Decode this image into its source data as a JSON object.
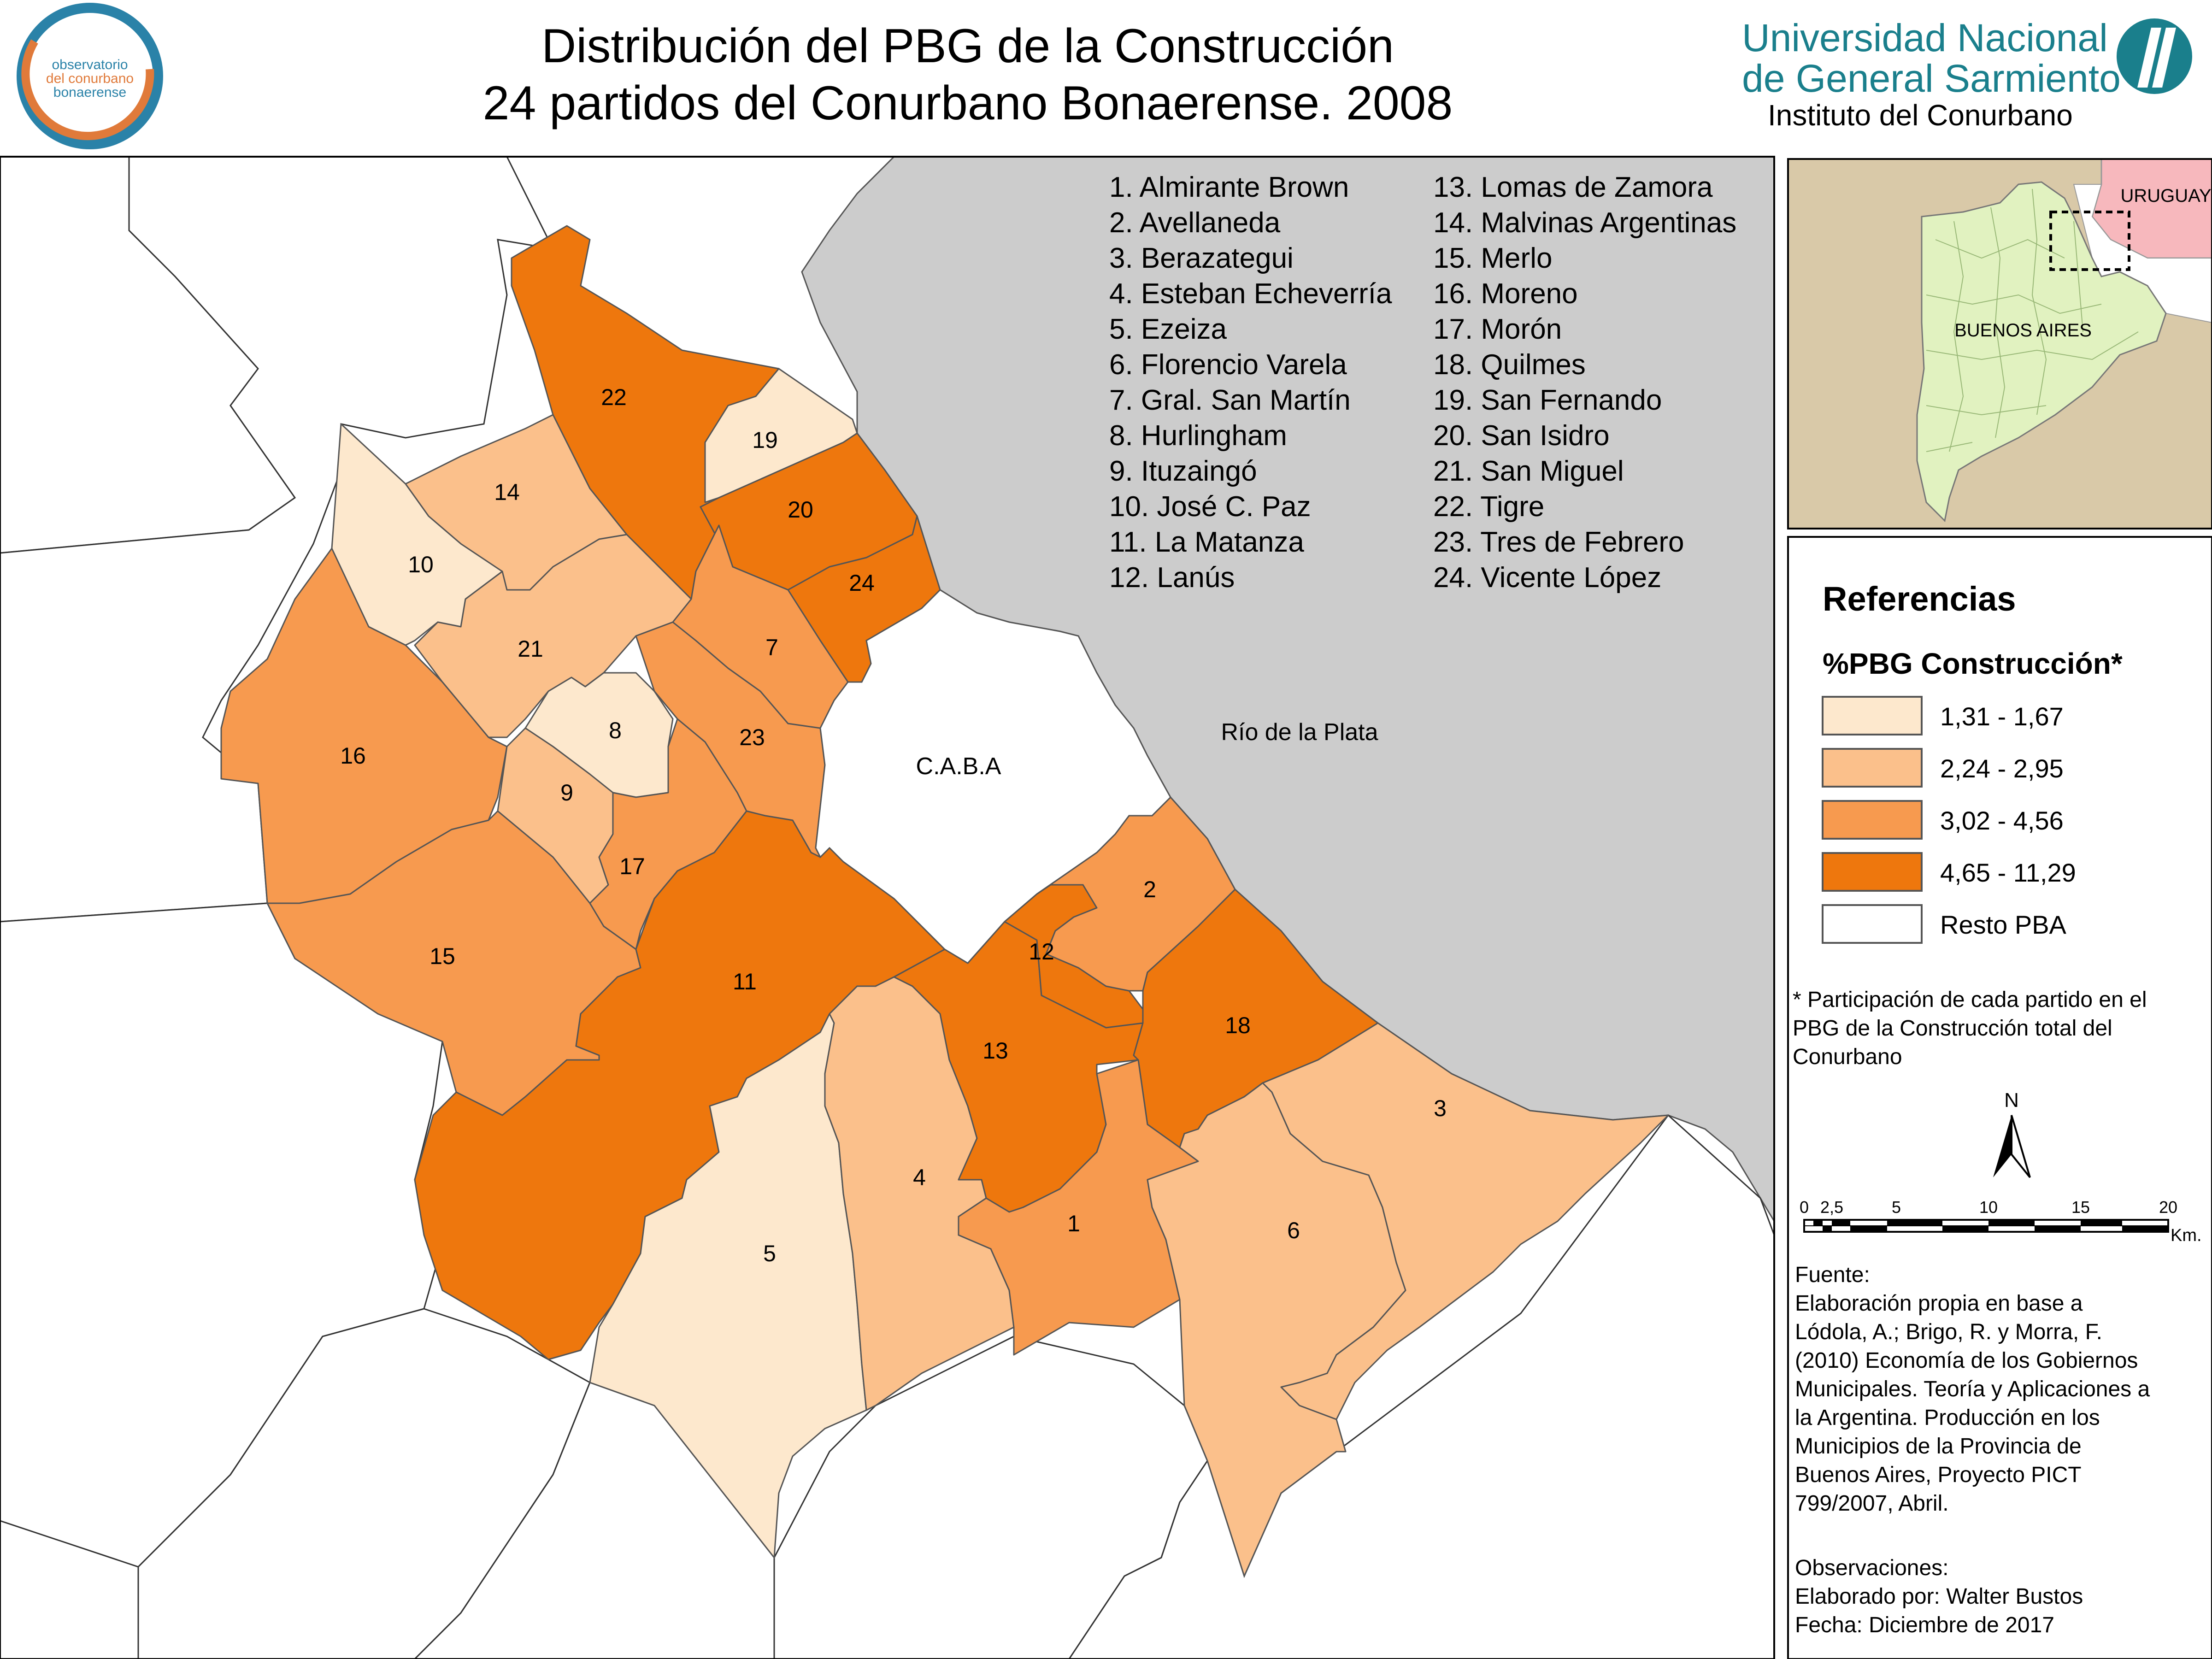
{
  "header": {
    "title_line1": "Distribución del PBG de la Construcción",
    "title_line2": "24 partidos del Conurbano Bonaerense. 2008",
    "logo_left": {
      "line1": "observatorio",
      "line2": "del conurbano",
      "line3": "bonaerense"
    },
    "university": {
      "line1": "Universidad Nacional",
      "line2": "de General Sarmiento",
      "institute": "Instituto del Conurbano"
    }
  },
  "colors": {
    "class1": "#fde8cd",
    "class2": "#fbc08b",
    "class3": "#f79a4f",
    "class4": "#ee770d",
    "resto": "#ffffff",
    "water": "#cccccc",
    "brand_teal": "#1a7f8c",
    "logo_orange": "#e07a3a",
    "logo_blue": "#2a82a8",
    "inset_land": "#d9c9a8",
    "inset_pba": "#e1f2c0",
    "inset_uruguay": "#f7b8bd"
  },
  "map": {
    "water_label": "Río de la Plata",
    "caba_label": "C.A.B.A",
    "partidos": [
      {
        "num": "1",
        "name": "Almirante Brown",
        "class": 3
      },
      {
        "num": "2",
        "name": "Avellaneda",
        "class": 3
      },
      {
        "num": "3",
        "name": "Berazategui",
        "class": 2
      },
      {
        "num": "4",
        "name": "Esteban Echeverría",
        "class": 2
      },
      {
        "num": "5",
        "name": "Ezeiza",
        "class": 1
      },
      {
        "num": "6",
        "name": "Florencio Varela",
        "class": 2
      },
      {
        "num": "7",
        "name": "Gral. San Martín",
        "class": 3
      },
      {
        "num": "8",
        "name": "Hurlingham",
        "class": 1
      },
      {
        "num": "9",
        "name": "Ituzaingó",
        "class": 2
      },
      {
        "num": "10",
        "name": "José C. Paz",
        "class": 1
      },
      {
        "num": "11",
        "name": "La Matanza",
        "class": 4
      },
      {
        "num": "12",
        "name": "Lanús",
        "class": 4
      },
      {
        "num": "13",
        "name": "Lomas de Zamora",
        "class": 4
      },
      {
        "num": "14",
        "name": "Malvinas Argentinas",
        "class": 2
      },
      {
        "num": "15",
        "name": "Merlo",
        "class": 3
      },
      {
        "num": "16",
        "name": "Moreno",
        "class": 3
      },
      {
        "num": "17",
        "name": "Morón",
        "class": 3
      },
      {
        "num": "18",
        "name": "Quilmes",
        "class": 4
      },
      {
        "num": "19",
        "name": "San Fernando",
        "class": 1
      },
      {
        "num": "20",
        "name": "San Isidro",
        "class": 4
      },
      {
        "num": "21",
        "name": "San Miguel",
        "class": 2
      },
      {
        "num": "22",
        "name": "Tigre",
        "class": 4
      },
      {
        "num": "23",
        "name": "Tres de Febrero",
        "class": 3
      },
      {
        "num": "24",
        "name": "Vicente López",
        "class": 4
      }
    ],
    "list_left": [
      "1. Almirante Brown",
      "2. Avellaneda",
      "3. Berazategui",
      "4. Esteban Echeverría",
      "5. Ezeiza",
      "6. Florencio Varela",
      "7. Gral. San Martín",
      "8. Hurlingham",
      "9. Ituzaingó",
      "10. José C. Paz",
      "11. La Matanza",
      "12. Lanús"
    ],
    "list_right": [
      "13. Lomas de Zamora",
      "14. Malvinas Argentinas",
      "15. Merlo",
      "16. Moreno",
      "17. Morón",
      "18. Quilmes",
      "19. San Fernando",
      "20. San Isidro",
      "21. San Miguel",
      "22. Tigre",
      "23. Tres de Febrero",
      "24. Vicente López"
    ]
  },
  "inset": {
    "uruguay_label": "URUGUAY",
    "pba_label": "BUENOS AIRES"
  },
  "legend": {
    "title": "Referencias",
    "subtitle": "%PBG Construcción*",
    "items": [
      {
        "label": "1,31 - 1,67",
        "class": 1
      },
      {
        "label": "2,24 - 2,95",
        "class": 2
      },
      {
        "label": "3,02 - 4,56",
        "class": 3
      },
      {
        "label": "4,65 - 11,29",
        "class": 4
      },
      {
        "label": "Resto PBA",
        "class": 0
      }
    ],
    "note": [
      "* Participación de cada partido en el",
      "PBG de la Construcción total del",
      "Conurbano"
    ],
    "north": "N",
    "scale_ticks": [
      "0",
      "2,5",
      "5",
      "10",
      "15",
      "20"
    ],
    "scale_unit": "Km.",
    "source": [
      "Fuente:",
      " Elaboración propia en base a",
      "Lódola, A.; Brigo, R. y Morra, F.",
      "(2010) Economía de los Gobiernos",
      "Municipales. Teoría y Aplicaciones a",
      "la Argentina. Producción en los",
      "Municipios de la Provincia de",
      "Buenos Aires, Proyecto PICT",
      "799/2007, Abril."
    ],
    "observations": [
      "Observaciones:",
      "Elaborado por: Walter Bustos",
      "Fecha: Diciembre de 2017"
    ]
  }
}
